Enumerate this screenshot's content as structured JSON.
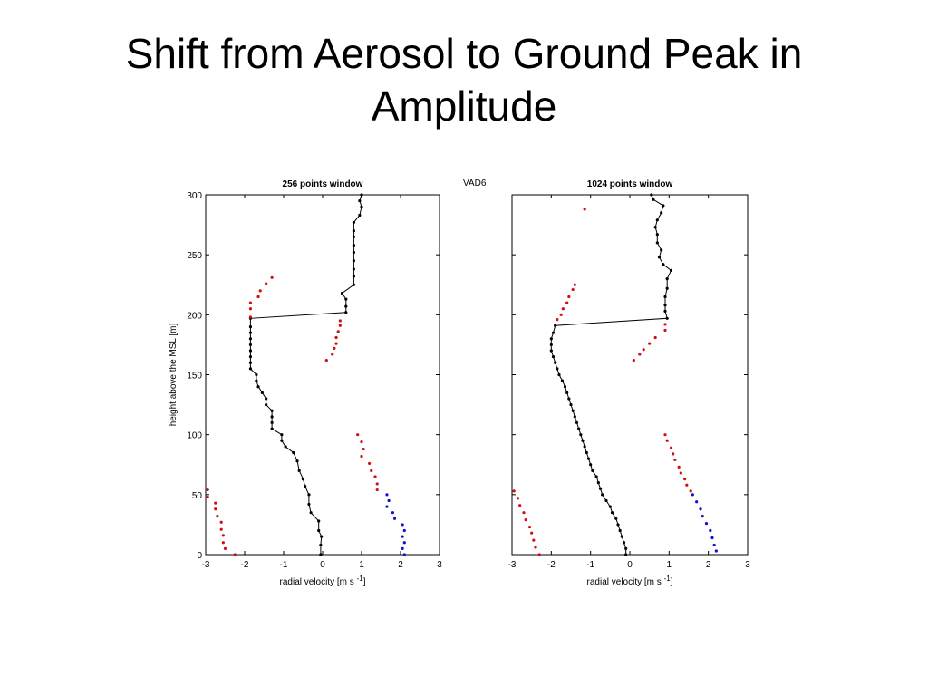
{
  "slide": {
    "title_line1": "Shift from Aerosol to Ground Peak in",
    "title_line2": "Amplitude"
  },
  "figure_label": "VAD6",
  "colors": {
    "line": "#000000",
    "red": "#d01010",
    "blue": "#1010d0"
  },
  "chart_data": [
    {
      "type": "scatter",
      "title": "256 points window",
      "xlabel": "radial velocity [m s",
      "xlabel_sup": "-1",
      "xlabel_end": "]",
      "ylabel": "height above the MSL [m]",
      "xlim": [
        -3,
        3
      ],
      "ylim": [
        0,
        300
      ],
      "xticks": [
        -3,
        -2,
        -1,
        0,
        1,
        2,
        3
      ],
      "yticks": [
        0,
        50,
        100,
        150,
        200,
        250,
        300
      ],
      "grid": false,
      "series": [
        {
          "style": "line-dot",
          "color": "#000000",
          "points": [
            [
              -0.05,
              0
            ],
            [
              -0.05,
              8
            ],
            [
              -0.03,
              15
            ],
            [
              -0.1,
              20
            ],
            [
              -0.1,
              28
            ],
            [
              -0.3,
              35
            ],
            [
              -0.35,
              42
            ],
            [
              -0.35,
              50
            ],
            [
              -0.45,
              57
            ],
            [
              -0.5,
              63
            ],
            [
              -0.6,
              70
            ],
            [
              -0.65,
              78
            ],
            [
              -0.75,
              85
            ],
            [
              -0.95,
              90
            ],
            [
              -1.05,
              95
            ],
            [
              -1.05,
              100
            ],
            [
              -1.3,
              105
            ],
            [
              -1.3,
              110
            ],
            [
              -1.3,
              115
            ],
            [
              -1.3,
              120
            ],
            [
              -1.45,
              125
            ],
            [
              -1.45,
              130
            ],
            [
              -1.55,
              135
            ],
            [
              -1.65,
              140
            ],
            [
              -1.7,
              145
            ],
            [
              -1.7,
              150
            ],
            [
              -1.85,
              155
            ],
            [
              -1.85,
              160
            ],
            [
              -1.85,
              165
            ],
            [
              -1.85,
              170
            ],
            [
              -1.85,
              175
            ],
            [
              -1.85,
              180
            ],
            [
              -1.85,
              185
            ],
            [
              -1.85,
              190
            ],
            [
              -1.85,
              197
            ],
            [
              0.6,
              202
            ],
            [
              0.6,
              207
            ],
            [
              0.6,
              213
            ],
            [
              0.5,
              218
            ],
            [
              0.8,
              225
            ],
            [
              0.8,
              232
            ],
            [
              0.8,
              238
            ],
            [
              0.8,
              245
            ],
            [
              0.8,
              252
            ],
            [
              0.8,
              258
            ],
            [
              0.8,
              265
            ],
            [
              0.8,
              270
            ],
            [
              0.8,
              277
            ],
            [
              0.95,
              283
            ],
            [
              1.0,
              290
            ],
            [
              0.95,
              295
            ],
            [
              1.0,
              300
            ]
          ]
        },
        {
          "style": "dot",
          "color": "#d01010",
          "points": [
            [
              -1.3,
              231
            ],
            [
              -1.45,
              226
            ],
            [
              -1.6,
              220
            ],
            [
              -1.65,
              215
            ],
            [
              -1.85,
              210
            ],
            [
              -1.85,
              205
            ],
            [
              -1.85,
              198
            ],
            [
              0.45,
              195
            ],
            [
              0.45,
              191
            ],
            [
              0.4,
              186
            ],
            [
              0.35,
              181
            ],
            [
              0.35,
              176
            ],
            [
              0.3,
              172
            ],
            [
              0.25,
              167
            ],
            [
              0.1,
              162
            ],
            [
              0.9,
              100
            ],
            [
              1.0,
              94
            ],
            [
              1.05,
              88
            ],
            [
              1.0,
              82
            ],
            [
              1.2,
              76
            ],
            [
              1.25,
              70
            ],
            [
              1.35,
              65
            ],
            [
              1.4,
              59
            ],
            [
              1.4,
              54
            ],
            [
              -2.95,
              54
            ],
            [
              -2.95,
              48
            ],
            [
              -2.75,
              43
            ],
            [
              -2.75,
              38
            ],
            [
              -2.7,
              32
            ],
            [
              -2.6,
              27
            ],
            [
              -2.6,
              21
            ],
            [
              -2.55,
              16
            ],
            [
              -2.55,
              10
            ],
            [
              -2.5,
              5
            ],
            [
              -2.25,
              0
            ]
          ]
        },
        {
          "style": "dot",
          "color": "#1010d0",
          "points": [
            [
              1.65,
              50
            ],
            [
              1.7,
              45
            ],
            [
              1.65,
              40
            ],
            [
              1.8,
              35
            ],
            [
              1.85,
              30
            ],
            [
              2.05,
              25
            ],
            [
              2.1,
              20
            ],
            [
              2.05,
              15
            ],
            [
              2.1,
              10
            ],
            [
              2.05,
              5
            ],
            [
              2.1,
              0
            ]
          ]
        }
      ]
    },
    {
      "type": "scatter",
      "title": "1024 points window",
      "xlabel": "radial velocity [m s",
      "xlabel_sup": "-1",
      "xlabel_end": "]",
      "ylabel": "",
      "xlim": [
        -3,
        3
      ],
      "ylim": [
        0,
        300
      ],
      "xticks": [
        -3,
        -2,
        -1,
        0,
        1,
        2,
        3
      ],
      "yticks": [
        0,
        50,
        100,
        150,
        200,
        250,
        300
      ],
      "grid": false,
      "series": [
        {
          "style": "line-dot",
          "color": "#000000",
          "points": [
            [
              -0.1,
              0
            ],
            [
              -0.1,
              5
            ],
            [
              -0.15,
              10
            ],
            [
              -0.2,
              15
            ],
            [
              -0.25,
              20
            ],
            [
              -0.3,
              25
            ],
            [
              -0.35,
              30
            ],
            [
              -0.45,
              35
            ],
            [
              -0.5,
              40
            ],
            [
              -0.6,
              45
            ],
            [
              -0.7,
              50
            ],
            [
              -0.75,
              55
            ],
            [
              -0.8,
              60
            ],
            [
              -0.85,
              65
            ],
            [
              -0.95,
              70
            ],
            [
              -1.0,
              75
            ],
            [
              -1.05,
              80
            ],
            [
              -1.1,
              85
            ],
            [
              -1.15,
              90
            ],
            [
              -1.2,
              95
            ],
            [
              -1.25,
              100
            ],
            [
              -1.3,
              105
            ],
            [
              -1.35,
              110
            ],
            [
              -1.4,
              115
            ],
            [
              -1.45,
              120
            ],
            [
              -1.5,
              125
            ],
            [
              -1.55,
              130
            ],
            [
              -1.6,
              135
            ],
            [
              -1.65,
              140
            ],
            [
              -1.72,
              145
            ],
            [
              -1.8,
              150
            ],
            [
              -1.85,
              155
            ],
            [
              -1.9,
              160
            ],
            [
              -1.95,
              165
            ],
            [
              -2.0,
              170
            ],
            [
              -2.0,
              175
            ],
            [
              -2.0,
              180
            ],
            [
              -1.95,
              185
            ],
            [
              -1.9,
              191
            ],
            [
              0.95,
              197
            ],
            [
              0.9,
              203
            ],
            [
              0.9,
              208
            ],
            [
              0.9,
              215
            ],
            [
              0.95,
              222
            ],
            [
              0.95,
              230
            ],
            [
              1.05,
              237
            ],
            [
              0.85,
              242
            ],
            [
              0.75,
              248
            ],
            [
              0.8,
              254
            ],
            [
              0.7,
              260
            ],
            [
              0.7,
              267
            ],
            [
              0.65,
              273
            ],
            [
              0.7,
              279
            ],
            [
              0.8,
              285
            ],
            [
              0.85,
              291
            ],
            [
              0.6,
              296
            ],
            [
              0.55,
              300
            ]
          ]
        },
        {
          "style": "dot",
          "color": "#d01010",
          "points": [
            [
              -1.15,
              288
            ],
            [
              -1.4,
              225
            ],
            [
              -1.45,
              221
            ],
            [
              -1.55,
              215
            ],
            [
              -1.6,
              210
            ],
            [
              -1.7,
              205
            ],
            [
              -1.75,
              200
            ],
            [
              -1.85,
              196
            ],
            [
              0.9,
              192
            ],
            [
              0.9,
              187
            ],
            [
              0.65,
              181
            ],
            [
              0.5,
              176
            ],
            [
              0.35,
              171
            ],
            [
              0.25,
              167
            ],
            [
              0.1,
              162
            ],
            [
              0.9,
              100
            ],
            [
              0.95,
              95
            ],
            [
              1.05,
              89
            ],
            [
              1.1,
              84
            ],
            [
              1.15,
              79
            ],
            [
              1.25,
              73
            ],
            [
              1.3,
              68
            ],
            [
              1.4,
              63
            ],
            [
              1.45,
              58
            ],
            [
              1.55,
              53
            ],
            [
              -2.95,
              53
            ],
            [
              -2.85,
              47
            ],
            [
              -2.8,
              41
            ],
            [
              -2.7,
              35
            ],
            [
              -2.65,
              29
            ],
            [
              -2.55,
              23
            ],
            [
              -2.5,
              18
            ],
            [
              -2.45,
              12
            ],
            [
              -2.4,
              6
            ],
            [
              -2.3,
              0
            ]
          ]
        },
        {
          "style": "dot",
          "color": "#1010d0",
          "points": [
            [
              1.6,
              50
            ],
            [
              1.7,
              44
            ],
            [
              1.8,
              38
            ],
            [
              1.85,
              32
            ],
            [
              1.95,
              26
            ],
            [
              2.05,
              20
            ],
            [
              2.1,
              14
            ],
            [
              2.15,
              8
            ],
            [
              2.2,
              3
            ]
          ]
        }
      ]
    }
  ]
}
